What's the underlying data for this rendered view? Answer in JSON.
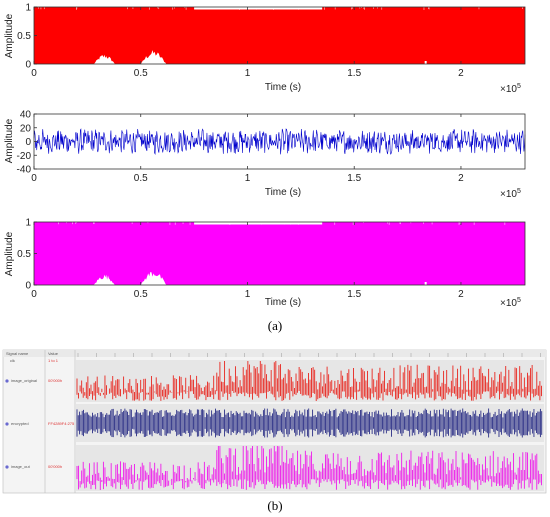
{
  "colors": {
    "original": "#ff0000",
    "encrypted": "#0000cc",
    "decrypted": "#ff00ff",
    "wave_original": "#e8261f",
    "wave_encrypted": "#2b2f86",
    "wave_decrypted": "#ee1bea",
    "wave_bg": "#e8e8e8",
    "wave_header": "#eeeeee"
  },
  "captions": {
    "a": "(a)",
    "b": "(b)"
  },
  "chart_data": [
    {
      "type": "area",
      "name": "plot-original",
      "xlabel": "Time (s)",
      "ylabel": "Amplitude",
      "xlim": [
        0,
        230000
      ],
      "ylim": [
        0,
        1
      ],
      "x_exponent": "×10^5",
      "x_exponent_base": "×10",
      "x_exponent_power": "5",
      "xticks": [
        "0",
        "0.5",
        "1",
        "1.5",
        "2"
      ],
      "xtick_values": [
        0,
        50000,
        100000,
        150000,
        200000
      ],
      "yticks": [
        "0",
        "0.5",
        "1"
      ],
      "ytick_values": [
        0,
        0.5,
        1
      ],
      "series": [
        {
          "values_note": "dense signal filling 0 to 1",
          "gap_regions": [
            [
              28000,
              38000
            ],
            [
              50000,
              62000
            ]
          ]
        }
      ]
    },
    {
      "type": "line",
      "name": "plot-encrypted",
      "xlabel": "Time (s)",
      "ylabel": "Amplitude",
      "xlim": [
        0,
        230000
      ],
      "ylim": [
        -40,
        40
      ],
      "x_exponent": "×10^5",
      "x_exponent_base": "×10",
      "x_exponent_power": "5",
      "xticks": [
        "0",
        "0.5",
        "1",
        "1.5",
        "2"
      ],
      "xtick_values": [
        0,
        50000,
        100000,
        150000,
        200000
      ],
      "yticks": [
        "-40",
        "-20",
        "0",
        "20",
        "40"
      ],
      "ytick_values": [
        -40,
        -20,
        0,
        20,
        40
      ],
      "series": [
        {
          "amplitude_range": [
            -20,
            20
          ]
        }
      ]
    },
    {
      "type": "area",
      "name": "plot-decrypted",
      "xlabel": "Time (s)",
      "ylabel": "Amplitude",
      "xlim": [
        0,
        230000
      ],
      "ylim": [
        0,
        1
      ],
      "x_exponent": "×10^5",
      "x_exponent_base": "×10",
      "x_exponent_power": "5",
      "xticks": [
        "0",
        "0.5",
        "1",
        "1.5",
        "2"
      ],
      "xtick_values": [
        0,
        50000,
        100000,
        150000,
        200000
      ],
      "yticks": [
        "0",
        "0.5",
        "1"
      ],
      "ytick_values": [
        0,
        0.5,
        1
      ],
      "series": [
        {
          "values_note": "dense signal filling 0 to 1",
          "gap_regions": [
            [
              28000,
              38000
            ],
            [
              50000,
              62000
            ]
          ]
        }
      ]
    }
  ],
  "waveform": {
    "header": {
      "signal_name": "Signal name",
      "value": "Value"
    },
    "signals": [
      {
        "name": "clk",
        "value": "1 to 1"
      },
      {
        "name": "image_original",
        "value": "00'000h"
      },
      {
        "name": "encrypted",
        "value": "FF4289F4:275"
      },
      {
        "name": "image_out",
        "value": "00'000h"
      }
    ]
  }
}
